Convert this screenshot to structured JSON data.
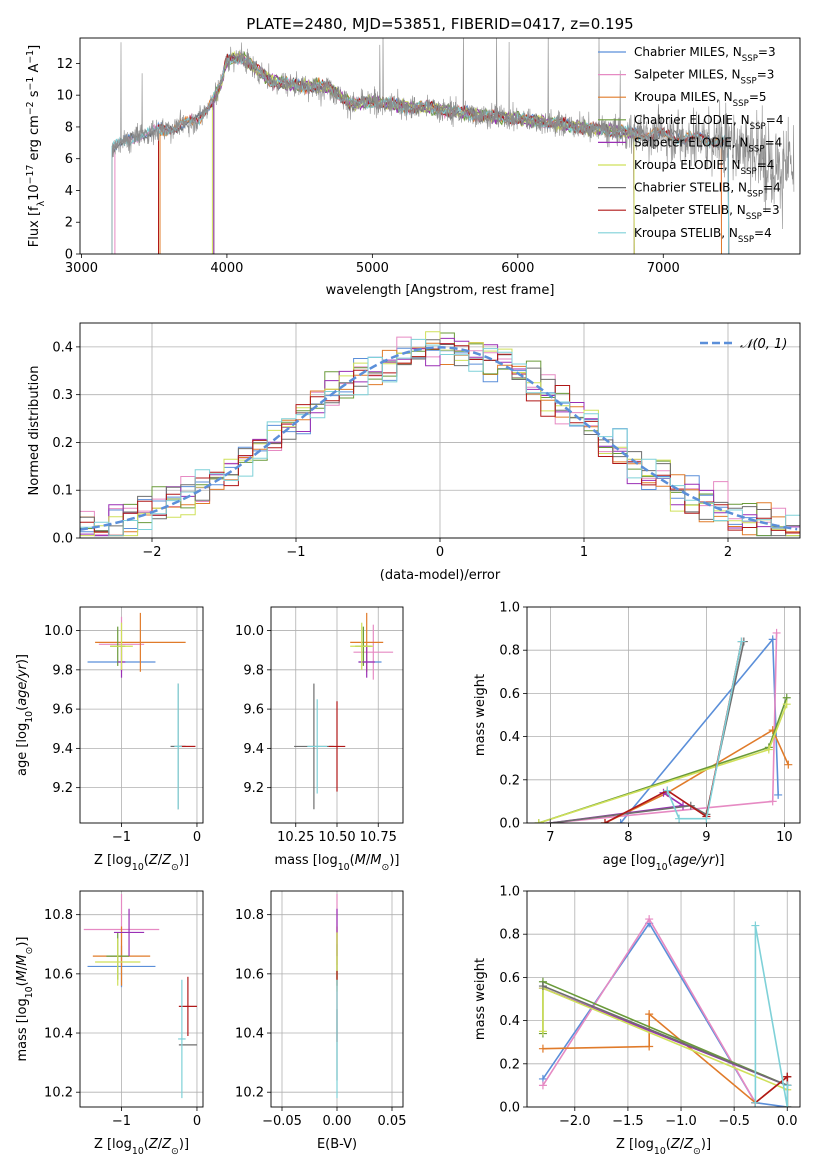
{
  "figure_title": "PLATE=2480, MJD=53851, FIBERID=0417, z=0.195",
  "colors": {
    "c1": "#5b8fd9",
    "c2": "#e68ac3",
    "c3": "#e07b2a",
    "c4": "#6a9a3a",
    "c5": "#9a2fb5",
    "c6": "#cfe05a",
    "c7": "#6e6e6e",
    "c8": "#b01818",
    "c9": "#7fd1d8",
    "data": "#8c8c8c"
  },
  "chart_data": [
    {
      "id": "spectrum",
      "type": "line",
      "title": "PLATE=2480, MJD=53851, FIBERID=0417, z=0.195",
      "xlabel": "wavelength [Angstrom, rest frame]",
      "ylabel": "Flux [f_λ10^-17 erg cm^-2 s^-1 A^-1]",
      "xlim": [
        2990,
        7940
      ],
      "ylim": [
        0,
        13.6
      ],
      "xticks": [
        3000,
        4000,
        5000,
        6000,
        7000
      ],
      "yticks": [
        0,
        2,
        4,
        6,
        8,
        10,
        12
      ],
      "grid": false,
      "legend_position": "top-right",
      "continuum": {
        "x": [
          3200,
          3400,
          3600,
          3800,
          3950,
          4000,
          4100,
          4300,
          4500,
          4700,
          4860,
          5000,
          5200,
          5400,
          5600,
          5800,
          6000,
          6200,
          6500,
          6800,
          7000,
          7200,
          7400
        ],
        "y": [
          6.6,
          7.5,
          7.9,
          8.4,
          10.4,
          12.2,
          12.4,
          10.9,
          10.6,
          10.5,
          9.4,
          9.6,
          9.3,
          9.2,
          8.9,
          8.7,
          8.5,
          8.3,
          7.9,
          7.6,
          7.5,
          7.3,
          7.1
        ]
      },
      "models": [
        {
          "name": "Chabrier MILES, N_SSP=3",
          "start": 3210,
          "end": 7450
        },
        {
          "name": "Salpeter MILES, N_SSP=3",
          "start": 3230,
          "end": 7400
        },
        {
          "name": "Kroupa MILES, N_SSP=5",
          "start": 3540,
          "end": 7400
        },
        {
          "name": "Chabrier ELODIE, N_SSP=4",
          "start": 3910,
          "end": 6800
        },
        {
          "name": "Salpeter ELODIE, N_SSP=4",
          "start": 3910,
          "end": 6800
        },
        {
          "name": "Kroupa ELODIE, N_SSP=4",
          "start": 3900,
          "end": 6800
        },
        {
          "name": "Chabrier STELIB, N_SSP=4",
          "start": 3210,
          "end": 7450
        },
        {
          "name": "Salpeter STELIB, N_SSP=3",
          "start": 3530,
          "end": 7450
        },
        {
          "name": "Kroupa STELIB, N_SSP=4",
          "start": 3210,
          "end": 7450
        }
      ]
    },
    {
      "id": "residuals",
      "type": "line",
      "xlabel": "(data-model)/error",
      "ylabel": "Normed distribution",
      "xlim": [
        -2.5,
        2.5
      ],
      "ylim": [
        0,
        0.45
      ],
      "xticks": [
        -2,
        -1,
        0,
        1,
        2
      ],
      "yticks": [
        0.0,
        0.1,
        0.2,
        0.3,
        0.4
      ],
      "grid": true,
      "legend_position": "top-right",
      "gaussian_label": "𝒩(0, 1)",
      "bin_width": 0.1
    },
    {
      "id": "z-age",
      "type": "scatter",
      "xlabel": "Z [log10(Z/Z⊙)]",
      "ylabel": "age  [log10(age/yr)]",
      "xlim": [
        -1.55,
        0.08
      ],
      "ylim": [
        9.02,
        10.12
      ],
      "xticks": [
        -1,
        0
      ],
      "yticks": [
        9.2,
        9.4,
        9.6,
        9.8,
        10.0
      ],
      "grid": true,
      "points": [
        {
          "x": -1.0,
          "y": 9.84,
          "xerr": 0.45,
          "yerr": 0.0,
          "s": 0
        },
        {
          "x": -1.0,
          "y": 9.93,
          "xerr": 0.3,
          "yerr": 0.14,
          "s": 1
        },
        {
          "x": -0.75,
          "y": 9.94,
          "xerr": 0.6,
          "yerr": 0.15,
          "s": 2
        },
        {
          "x": -1.05,
          "y": 9.92,
          "xerr": 0.1,
          "yerr": 0.1,
          "s": 3
        },
        {
          "x": -1.0,
          "y": 9.84,
          "xerr": 0.05,
          "yerr": 0.08,
          "s": 4
        },
        {
          "x": -1.0,
          "y": 9.92,
          "xerr": 0.15,
          "yerr": 0.12,
          "s": 5
        },
        {
          "x": -0.25,
          "y": 9.41,
          "xerr": 0.1,
          "yerr": 0.32,
          "s": 6
        },
        {
          "x": -0.12,
          "y": 9.41,
          "xerr": 0.1,
          "yerr": 0.0,
          "s": 7
        },
        {
          "x": -0.25,
          "y": 9.41,
          "xerr": 0.05,
          "yerr": 0.32,
          "s": 8
        }
      ]
    },
    {
      "id": "mass-age",
      "type": "scatter",
      "xlabel": "mass [log10(M/M⊙)]",
      "ylabel": "",
      "xlim": [
        10.1,
        10.9
      ],
      "ylim": [
        9.02,
        10.12
      ],
      "xticks": [
        10.25,
        10.5,
        10.75
      ],
      "yticks": [
        9.2,
        9.4,
        9.6,
        9.8,
        10.0
      ],
      "grid": true,
      "points": [
        {
          "x": 10.7,
          "y": 9.84,
          "xerr": 0.07,
          "yerr": 0.0,
          "s": 0
        },
        {
          "x": 10.72,
          "y": 9.89,
          "xerr": 0.12,
          "yerr": 0.14,
          "s": 1
        },
        {
          "x": 10.68,
          "y": 9.94,
          "xerr": 0.1,
          "yerr": 0.15,
          "s": 2
        },
        {
          "x": 10.66,
          "y": 9.92,
          "xerr": 0.05,
          "yerr": 0.1,
          "s": 3
        },
        {
          "x": 10.68,
          "y": 9.84,
          "xerr": 0.05,
          "yerr": 0.08,
          "s": 4
        },
        {
          "x": 10.65,
          "y": 9.92,
          "xerr": 0.07,
          "yerr": 0.12,
          "s": 5
        },
        {
          "x": 10.36,
          "y": 9.41,
          "xerr": 0.12,
          "yerr": 0.32,
          "s": 6
        },
        {
          "x": 10.5,
          "y": 9.41,
          "xerr": 0.05,
          "yerr": 0.23,
          "s": 7
        },
        {
          "x": 10.38,
          "y": 9.41,
          "xerr": 0.06,
          "yerr": 0.24,
          "s": 8
        }
      ]
    },
    {
      "id": "age-weight",
      "type": "line",
      "xlabel": "age  [log10(age/yr)]",
      "ylabel": "mass weight",
      "xlim": [
        6.7,
        10.2
      ],
      "ylim": [
        0,
        1.0
      ],
      "xticks": [
        7,
        8,
        9,
        10
      ],
      "yticks": [
        0.0,
        0.2,
        0.4,
        0.6,
        0.8,
        1.0
      ],
      "grid": true,
      "series": [
        {
          "s": 0,
          "x": [
            7.9,
            9.85,
            9.92
          ],
          "y": [
            0.0,
            0.85,
            0.13
          ]
        },
        {
          "s": 1,
          "x": [
            7.0,
            9.85,
            9.9
          ],
          "y": [
            0.0,
            0.1,
            0.88
          ]
        },
        {
          "s": 2,
          "x": [
            7.7,
            8.5,
            9.85,
            10.05
          ],
          "y": [
            0.0,
            0.14,
            0.43,
            0.27
          ]
        },
        {
          "s": 3,
          "x": [
            6.85,
            9.8,
            10.03
          ],
          "y": [
            0.0,
            0.35,
            0.58
          ]
        },
        {
          "s": 4,
          "x": [
            7.0,
            8.7,
            8.45
          ],
          "y": [
            0.0,
            0.08,
            0.14
          ]
        },
        {
          "s": 5,
          "x": [
            6.85,
            9.8,
            10.03
          ],
          "y": [
            0.0,
            0.34,
            0.55
          ]
        },
        {
          "s": 6,
          "x": [
            7.0,
            8.8,
            9.0,
            9.48
          ],
          "y": [
            0.0,
            0.08,
            0.04,
            0.84
          ]
        },
        {
          "s": 7,
          "x": [
            7.7,
            8.5,
            9.0,
            9.45
          ],
          "y": [
            0.0,
            0.15,
            0.03,
            0.84
          ]
        },
        {
          "s": 8,
          "x": [
            8.5,
            8.65,
            9.0,
            9.45
          ],
          "y": [
            0.15,
            0.02,
            0.02,
            0.84
          ]
        }
      ]
    },
    {
      "id": "z-mass",
      "type": "scatter",
      "xlabel": "Z [log10(Z/Z⊙)]",
      "ylabel": "mass [log10(M/M⊙)]",
      "xlim": [
        -1.55,
        0.08
      ],
      "ylim": [
        10.15,
        10.88
      ],
      "xticks": [
        -1,
        0
      ],
      "yticks": [
        10.2,
        10.4,
        10.6,
        10.8
      ],
      "grid": true,
      "points": [
        {
          "x": -1.0,
          "y": 10.625,
          "xerr": 0.45,
          "yerr": 0.07,
          "s": 0
        },
        {
          "x": -1.0,
          "y": 10.75,
          "xerr": 0.5,
          "yerr": 0.12,
          "s": 1
        },
        {
          "x": -1.0,
          "y": 10.66,
          "xerr": 0.38,
          "yerr": 0.1,
          "s": 2
        },
        {
          "x": -1.05,
          "y": 10.66,
          "xerr": 0.15,
          "yerr": 0.08,
          "s": 3
        },
        {
          "x": -0.9,
          "y": 10.74,
          "xerr": 0.2,
          "yerr": 0.08,
          "s": 4
        },
        {
          "x": -1.05,
          "y": 10.64,
          "xerr": 0.3,
          "yerr": 0.08,
          "s": 5
        },
        {
          "x": -0.12,
          "y": 10.36,
          "xerr": 0.12,
          "yerr": 0.0,
          "s": 6
        },
        {
          "x": -0.12,
          "y": 10.49,
          "xerr": 0.12,
          "yerr": 0.1,
          "s": 7
        },
        {
          "x": -0.2,
          "y": 10.38,
          "xerr": 0.05,
          "yerr": 0.2,
          "s": 8
        }
      ]
    },
    {
      "id": "ebv-mass",
      "type": "scatter",
      "xlabel": "E(B-V)",
      "ylabel": "",
      "xlim": [
        -0.06,
        0.06
      ],
      "ylim": [
        10.15,
        10.88
      ],
      "xticks": [
        -0.05,
        0.0,
        0.05
      ],
      "yticks": [
        10.2,
        10.4,
        10.6,
        10.8
      ],
      "grid": true,
      "points": [
        {
          "x": 0.0,
          "y": 10.63,
          "xerr": 0.0,
          "yerr": 0.07,
          "s": 0
        },
        {
          "x": 0.0,
          "y": 10.75,
          "xerr": 0.0,
          "yerr": 0.12,
          "s": 1
        },
        {
          "x": 0.0,
          "y": 10.66,
          "xerr": 0.0,
          "yerr": 0.1,
          "s": 2
        },
        {
          "x": 0.0,
          "y": 10.66,
          "xerr": 0.0,
          "yerr": 0.08,
          "s": 3
        },
        {
          "x": 0.0,
          "y": 10.74,
          "xerr": 0.0,
          "yerr": 0.08,
          "s": 4
        },
        {
          "x": 0.0,
          "y": 10.64,
          "xerr": 0.0,
          "yerr": 0.1,
          "s": 5
        },
        {
          "x": 0.0,
          "y": 10.36,
          "xerr": 0.0,
          "yerr": 0.12,
          "s": 6
        },
        {
          "x": 0.0,
          "y": 10.49,
          "xerr": 0.0,
          "yerr": 0.12,
          "s": 7
        },
        {
          "x": 0.0,
          "y": 10.38,
          "xerr": 0.0,
          "yerr": 0.2,
          "s": 8
        }
      ]
    },
    {
      "id": "z-weight",
      "type": "line",
      "xlabel": "Z [log10(Z/Z⊙)]",
      "ylabel": "mass weight",
      "xlim": [
        -2.45,
        0.12
      ],
      "ylim": [
        0,
        1.0
      ],
      "xticks": [
        -2.0,
        -1.5,
        -1.0,
        -0.5,
        0.0
      ],
      "yticks": [
        0.0,
        0.2,
        0.4,
        0.6,
        0.8,
        1.0
      ],
      "grid": true,
      "series": [
        {
          "s": 0,
          "x": [
            -2.3,
            -1.3,
            -0.3,
            0.0
          ],
          "y": [
            0.13,
            0.85,
            0.02,
            0.0
          ]
        },
        {
          "s": 1,
          "x": [
            -2.3,
            -1.3,
            -0.3
          ],
          "y": [
            0.1,
            0.87,
            0.02
          ]
        },
        {
          "s": 2,
          "x": [
            -2.3,
            -1.3,
            -1.3,
            -0.3,
            0.0
          ],
          "y": [
            0.27,
            0.28,
            0.43,
            0.02,
            0.14
          ]
        },
        {
          "s": 3,
          "x": [
            -2.3,
            -2.3,
            0.0,
            0.0
          ],
          "y": [
            0.34,
            0.58,
            0.1,
            0.0
          ]
        },
        {
          "s": 4,
          "x": [
            -2.3,
            0.0
          ],
          "y": [
            0.55,
            0.1
          ]
        },
        {
          "s": 5,
          "x": [
            -2.3,
            -2.3,
            0.0
          ],
          "y": [
            0.35,
            0.55,
            0.08
          ]
        },
        {
          "s": 6,
          "x": [
            -2.3,
            0.0,
            0.0
          ],
          "y": [
            0.56,
            0.1,
            0.14
          ]
        },
        {
          "s": 7,
          "x": [
            -0.3,
            0.0,
            0.0
          ],
          "y": [
            0.02,
            0.14,
            0.0
          ]
        },
        {
          "s": 8,
          "x": [
            -0.3,
            -0.3,
            0.0,
            0.0
          ],
          "y": [
            0.02,
            0.84,
            0.0,
            0.1
          ]
        }
      ]
    }
  ]
}
